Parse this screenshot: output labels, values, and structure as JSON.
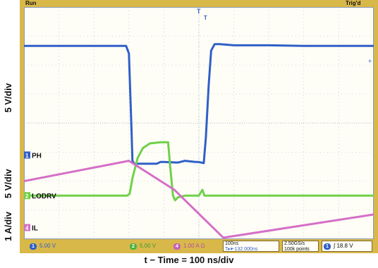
{
  "status": {
    "run": "Run",
    "trig": "Trig'd"
  },
  "labels": {
    "y_top": "5 V/div",
    "y_mid": "5 V/div",
    "y_bottom": "1 A/div",
    "x": "t − Time = 100 ns/div",
    "ph": "PH",
    "lodrv": "LODRV",
    "il": "IL",
    "ph_marker": "1",
    "lodrv_marker": "2",
    "il_marker": "4"
  },
  "bottom": {
    "ch1_num": "1",
    "ch1": "5.00 V",
    "ch2_num": "2",
    "ch2": "5.00 V",
    "ch4_num": "4",
    "ch4": "1.00 A Ω",
    "timebase": "100ns",
    "delay": "T▸▾-132.000ns",
    "rate": "2.50GS/s",
    "points": "100k points",
    "trig_num": "1",
    "trig_slope": "∫",
    "trig_level": "18.8 V"
  },
  "colors": {
    "ph": "#2f5fc8",
    "lodrv": "#6fd04a",
    "il": "#d46fc8",
    "frame": "#d9b84a",
    "grid": "#9fb4d0"
  },
  "chart_data": {
    "type": "line",
    "x_unit": "ns",
    "xlim": [
      -500,
      500
    ],
    "series": [
      {
        "name": "PH",
        "unit": "V",
        "scale": "5 V/div",
        "x": [
          -500,
          -208,
          -200,
          -193,
          -190,
          -185,
          -120,
          -110,
          -100,
          -60,
          -40,
          -10,
          0,
          14,
          20,
          28,
          35,
          45,
          60,
          100,
          200,
          300,
          400,
          500
        ],
        "y": [
          18.8,
          18.8,
          17.5,
          5,
          -1.0,
          -1.5,
          -1.5,
          -1.2,
          -1.2,
          -1.3,
          -1.0,
          -1.2,
          -1.2,
          -1.4,
          3,
          12,
          18,
          19.1,
          19.1,
          18.9,
          18.9,
          18.8,
          18.8,
          18.8
        ]
      },
      {
        "name": "LODRV",
        "unit": "V",
        "scale": "5 V/div",
        "x": [
          -500,
          -205,
          -198,
          -190,
          -175,
          -160,
          -140,
          -110,
          -88,
          -82,
          -74,
          -68,
          -60,
          -40,
          -10,
          0,
          10,
          16,
          20,
          40,
          100,
          200,
          300,
          400,
          500
        ],
        "y": [
          0,
          0,
          0.3,
          3,
          6.5,
          8.2,
          9.0,
          9.2,
          9.2,
          5,
          0,
          -0.8,
          -0.3,
          0,
          0,
          0,
          1.0,
          0,
          0,
          0,
          0,
          0,
          0,
          0,
          0
        ]
      },
      {
        "name": "IL",
        "unit": "A",
        "scale": "1 A/div",
        "x": [
          -500,
          -200,
          -70,
          70,
          500
        ],
        "y": [
          1.6,
          2.3,
          1.3,
          -0.35,
          0.45
        ]
      }
    ]
  }
}
